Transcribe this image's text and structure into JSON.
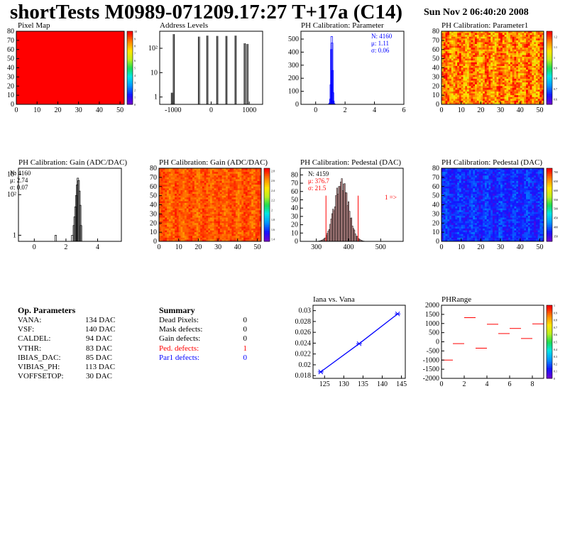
{
  "header": {
    "title": "shortTests M0989-071209.17:27 T+17a (C14)",
    "date": "Sun Nov  2 06:40:20 2008"
  },
  "op_parameters": {
    "heading": "Op. Parameters",
    "rows": [
      {
        "name": "VANA:",
        "value": "134 DAC"
      },
      {
        "name": "VSF:",
        "value": "140 DAC"
      },
      {
        "name": "CALDEL:",
        "value": "94 DAC"
      },
      {
        "name": "VTHR:",
        "value": "83 DAC"
      },
      {
        "name": "IBIAS_DAC:",
        "value": "85 DAC"
      },
      {
        "name": "VIBIAS_PH:",
        "value": "113 DAC"
      },
      {
        "name": "VOFFSETOP:",
        "value": "30 DAC"
      }
    ]
  },
  "summary": {
    "heading": "Summary",
    "rows": [
      {
        "name": "Dead Pixels:",
        "value": "0",
        "color": "#000000"
      },
      {
        "name": "Mask defects:",
        "value": "0",
        "color": "#000000"
      },
      {
        "name": "Gain defects:",
        "value": "0",
        "color": "#000000"
      },
      {
        "name": "Ped. defects:",
        "value": "1",
        "color": "#ff0000"
      },
      {
        "name": "Par1 defects:",
        "value": "0",
        "color": "#0000ff"
      }
    ]
  },
  "colors": {
    "red": "#ff0000",
    "blue": "#0000ff",
    "fill_red": "#ff0000",
    "hist_fill": "#d8a0a0"
  },
  "chart_data": [
    {
      "id": "pixel-map",
      "type": "heatmap",
      "title": "Pixel Map",
      "xlim": [
        0,
        52
      ],
      "ylim": [
        0,
        80
      ],
      "xticks": [
        0,
        10,
        20,
        30,
        40,
        50
      ],
      "yticks": [
        0,
        10,
        20,
        30,
        40,
        50,
        60,
        70,
        80
      ],
      "zticks": [
        0,
        1,
        2,
        3,
        4,
        5,
        6,
        7,
        8,
        9,
        10
      ],
      "uniform_value": 10
    },
    {
      "id": "address-levels",
      "type": "bar",
      "title": "Address Levels",
      "log_y": true,
      "xlim": [
        -1350,
        1350
      ],
      "ylim": [
        0.5,
        500
      ],
      "xticks": [
        -1000,
        0,
        1000
      ],
      "ytick_labels": [
        "1",
        "10",
        "10²"
      ],
      "peaks": [
        {
          "x": -1030,
          "y": 1.5
        },
        {
          "x": -980,
          "y": 380
        },
        {
          "x": -320,
          "y": 300
        },
        {
          "x": -100,
          "y": 330
        },
        {
          "x": 160,
          "y": 320
        },
        {
          "x": 400,
          "y": 320
        },
        {
          "x": 640,
          "y": 330
        },
        {
          "x": 880,
          "y": 160
        },
        {
          "x": 950,
          "y": 150
        }
      ]
    },
    {
      "id": "ph-cal-param",
      "type": "bar",
      "title": "PH Calibration: Parameter",
      "xlim": [
        -1,
        6
      ],
      "ylim": [
        0,
        560
      ],
      "xticks": [
        0,
        2,
        4,
        6
      ],
      "yticks": [
        0,
        100,
        200,
        300,
        400,
        500
      ],
      "stats": [
        "N: 4160",
        "μ: 1.11",
        "σ: 0.06"
      ],
      "x": [
        0.9,
        0.95,
        1.0,
        1.03,
        1.06,
        1.09,
        1.12,
        1.15,
        1.18,
        1.21,
        1.25,
        1.3
      ],
      "values": [
        2,
        10,
        40,
        150,
        420,
        520,
        470,
        260,
        90,
        25,
        6,
        2
      ]
    },
    {
      "id": "ph-cal-param1",
      "type": "heatmap",
      "title": "PH Calibration: Parameter1",
      "xlim": [
        0,
        52
      ],
      "ylim": [
        0,
        80
      ],
      "xticks": [
        0,
        10,
        20,
        30,
        40,
        50
      ],
      "yticks": [
        0,
        10,
        20,
        30,
        40,
        50,
        60,
        70,
        80
      ],
      "zticks": [
        0.6,
        0.7,
        0.8,
        0.9,
        1,
        1.1,
        1.2
      ],
      "zlim": [
        0.55,
        1.25
      ],
      "center": 1.15,
      "spread": 0.08
    },
    {
      "id": "ph-cal-gain",
      "type": "bar",
      "title": "PH Calibration: Gain (ADC/DAC)",
      "log_y": true,
      "xlim": [
        -1,
        5.5
      ],
      "ylim": [
        0.5,
        2000
      ],
      "xticks": [
        0,
        2,
        4
      ],
      "ytick_labels": [
        "1",
        "10²",
        "10³"
      ],
      "stats": [
        "N: 4160",
        "μ: 2.74",
        "σ: 0.07"
      ],
      "x": [
        1.35,
        2.4,
        2.5,
        2.55,
        2.6,
        2.65,
        2.7,
        2.75,
        2.8,
        2.85,
        2.9,
        2.95
      ],
      "values": [
        1,
        1,
        3,
        8,
        25,
        90,
        300,
        650,
        500,
        150,
        30,
        3
      ]
    },
    {
      "id": "ph-cal-gain-map",
      "type": "heatmap",
      "title": "PH Calibration: Gain (ADC/DAC)",
      "xlim": [
        0,
        52
      ],
      "ylim": [
        0,
        80
      ],
      "xticks": [
        0,
        10,
        20,
        30,
        40,
        50
      ],
      "yticks": [
        0,
        10,
        20,
        30,
        40,
        50,
        60,
        70,
        80
      ],
      "zticks": [
        1.4,
        1.6,
        1.8,
        2,
        2.2,
        2.4,
        2.6,
        2.8
      ],
      "zlim": [
        1.35,
        2.85
      ],
      "center": 2.72,
      "spread": 0.07
    },
    {
      "id": "ph-cal-pedestal",
      "type": "bar",
      "title": "PH Calibration: Pedestal (DAC)",
      "xlim": [
        250,
        570
      ],
      "ylim": [
        0,
        88
      ],
      "xticks": [
        300,
        400,
        500
      ],
      "yticks": [
        0,
        10,
        20,
        30,
        40,
        50,
        60,
        70,
        80
      ],
      "stats": [
        "N: 4159",
        "μ: 376.7",
        "σ: 21.5"
      ],
      "annotation": "1 =>",
      "cut_lines": [
        330,
        430
      ],
      "mean": 376.7,
      "sigma": 21.5,
      "peak": 72
    },
    {
      "id": "ph-cal-pedestal-map",
      "type": "heatmap",
      "title": "PH Calibration: Pedestal (DAC)",
      "xlim": [
        0,
        52
      ],
      "ylim": [
        0,
        80
      ],
      "xticks": [
        0,
        10,
        20,
        30,
        40,
        50
      ],
      "yticks": [
        0,
        10,
        20,
        30,
        40,
        50,
        60,
        70,
        80
      ],
      "zticks": [
        350,
        400,
        450,
        500,
        550,
        600,
        650,
        700
      ],
      "zlim": [
        320,
        720
      ],
      "center": 376.7,
      "spread": 21.5
    },
    {
      "id": "iana-vs-vana",
      "type": "line",
      "title": "Iana vs. Vana",
      "xlim": [
        122,
        146
      ],
      "ylim": [
        0.0175,
        0.031
      ],
      "xticks": [
        125,
        130,
        135,
        140,
        145
      ],
      "yticks": [
        0.018,
        0.02,
        0.022,
        0.024,
        0.026,
        0.028,
        0.03
      ],
      "x": [
        124,
        134,
        144
      ],
      "values": [
        0.0187,
        0.0239,
        0.0294
      ]
    },
    {
      "id": "ph-range",
      "type": "scatter",
      "title": "PHRange",
      "xlim": [
        0,
        9
      ],
      "ylim": [
        -2000,
        2000
      ],
      "xticks": [
        0,
        2,
        4,
        6,
        8
      ],
      "yticks": [
        -2000,
        -1500,
        -1000,
        -500,
        0,
        500,
        1000,
        1500,
        2000
      ],
      "zticks": [
        0,
        0.1,
        0.2,
        0.3,
        0.4,
        0.5,
        0.6,
        0.7,
        0.8,
        0.9,
        1
      ],
      "x": [
        0.5,
        1.5,
        2.5,
        3.5,
        4.5,
        5.5,
        6.5,
        7.5,
        8.5
      ],
      "values": [
        -1000,
        -100,
        1320,
        -350,
        960,
        450,
        730,
        180,
        980
      ]
    }
  ]
}
